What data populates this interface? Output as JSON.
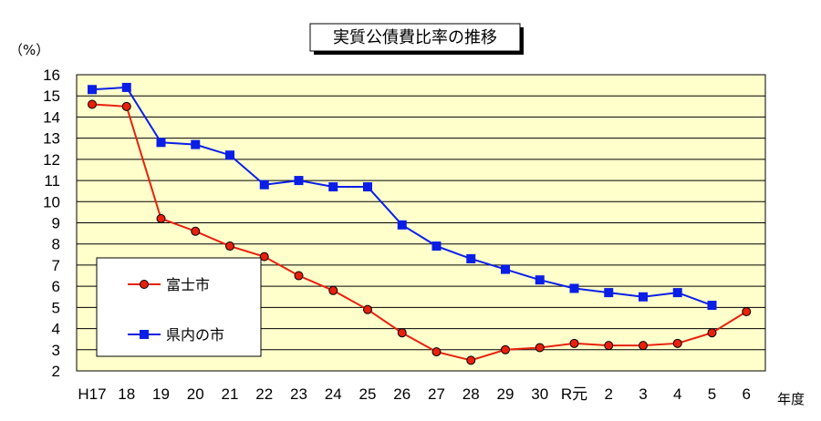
{
  "chart_data": {
    "type": "line",
    "title": "実質公債費比率の推移",
    "ylabel": "（%）",
    "xlabel": "年度",
    "ylim": [
      2,
      16
    ],
    "yticks": [
      2,
      3,
      4,
      5,
      6,
      7,
      8,
      9,
      10,
      11,
      12,
      13,
      14,
      15,
      16
    ],
    "categories": [
      "H17",
      "18",
      "19",
      "20",
      "21",
      "22",
      "23",
      "24",
      "25",
      "26",
      "27",
      "28",
      "29",
      "30",
      "R元",
      "2",
      "3",
      "4",
      "5",
      "6"
    ],
    "grid": true,
    "legend_position": "left",
    "series": [
      {
        "name": "富士市",
        "color": "#e8200c",
        "marker": "circle",
        "values": [
          14.6,
          14.5,
          9.2,
          8.6,
          7.9,
          7.4,
          6.5,
          5.8,
          4.9,
          3.8,
          2.9,
          2.5,
          3.0,
          3.1,
          3.3,
          3.2,
          3.2,
          3.3,
          3.8,
          4.8
        ]
      },
      {
        "name": "県内の市",
        "color": "#0a1ee6",
        "marker": "square",
        "values": [
          15.3,
          15.4,
          12.8,
          12.7,
          12.2,
          10.8,
          11.0,
          10.7,
          10.7,
          8.9,
          7.9,
          7.3,
          6.8,
          6.3,
          5.9,
          5.7,
          5.5,
          5.7,
          5.1,
          null
        ]
      }
    ],
    "plot_background": "#ffffcc"
  }
}
